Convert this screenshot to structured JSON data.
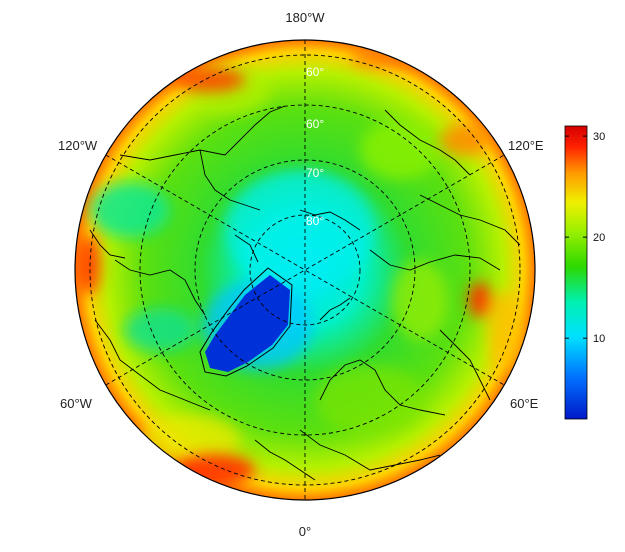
{
  "map": {
    "projection": "north-polar-stereographic",
    "longitude_labels": {
      "top": "180°W",
      "upper_left": "120°W",
      "upper_right": "120°E",
      "lower_left": "60°W",
      "lower_right": "60°E",
      "bottom": "0°"
    },
    "latitude_labels": [
      "60°",
      "60°",
      "70°",
      "80°"
    ]
  },
  "colorbar": {
    "ticks": [
      "10",
      "20",
      "30"
    ],
    "tick_values": [
      10,
      20,
      30
    ],
    "range": [
      2,
      31
    ],
    "colors": [
      "#0018c8",
      "#0070ff",
      "#00e0ff",
      "#00f0b0",
      "#2cd800",
      "#9af000",
      "#f0f000",
      "#ff9a00",
      "#ff2000",
      "#d40000"
    ]
  }
}
